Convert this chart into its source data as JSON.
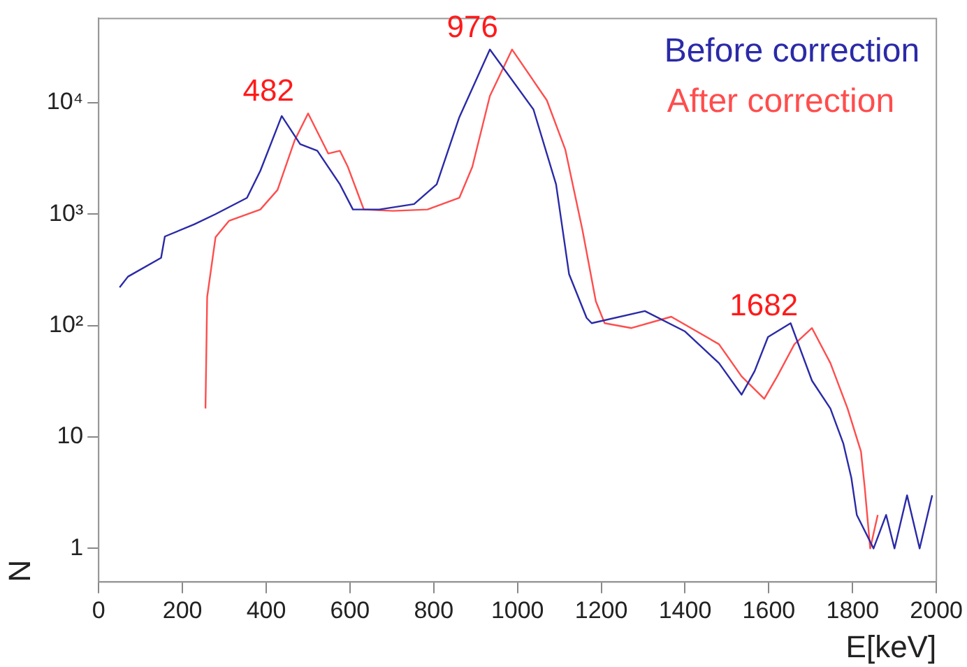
{
  "chart_data": {
    "type": "line",
    "xlabel": "E[keV]",
    "ylabel": "N",
    "xlim": [
      0,
      2000
    ],
    "xticks": [
      0,
      200,
      400,
      600,
      800,
      1000,
      1200,
      1400,
      1600,
      1800,
      2000
    ],
    "ylim": [
      0.5,
      57000
    ],
    "yticks": [
      1,
      10,
      {
        "value": 100,
        "label": "10²"
      },
      {
        "value": 1000,
        "label": "10³"
      },
      {
        "value": 10000,
        "label": "10⁴"
      }
    ],
    "log": "y",
    "grid": false,
    "legend": "top right",
    "marker": "none",
    "line_style": "solid",
    "series": [
      {
        "name": "Before correction",
        "color": "#2a2aa8",
        "x": [
          50,
          70,
          149,
          158,
          228,
          279,
          354,
          386,
          437,
          481,
          522,
          576,
          607,
          670,
          753,
          807,
          861,
          934,
          1038,
          1092,
          1123,
          1165,
          1177,
          1304,
          1399,
          1481,
          1535,
          1566,
          1598,
          1652,
          1703,
          1747,
          1778,
          1797,
          1810,
          1850,
          1880,
          1900,
          1930,
          1960,
          1990
        ],
        "values": [
          220,
          275,
          405,
          630,
          810,
          1000,
          1400,
          2450,
          7600,
          4250,
          3700,
          1850,
          1100,
          1100,
          1230,
          1850,
          7400,
          30000,
          8700,
          1850,
          290,
          117,
          105,
          135,
          89,
          46,
          24,
          39,
          79,
          105,
          32,
          18,
          8.7,
          4.3,
          2,
          1,
          2,
          1,
          3,
          1,
          3
        ]
      },
      {
        "name": "After correction",
        "color": "#ff4d4d",
        "x": [
          255,
          259,
          279,
          311,
          386,
          427,
          468,
          500,
          548,
          576,
          595,
          633,
          703,
          785,
          861,
          892,
          934,
          987,
          1070,
          1114,
          1155,
          1187,
          1208,
          1272,
          1367,
          1481,
          1535,
          1589,
          1620,
          1661,
          1703,
          1747,
          1788,
          1820,
          1829,
          1842,
          1860
        ],
        "values": [
          18,
          180,
          620,
          870,
          1100,
          1650,
          4600,
          8000,
          3500,
          3700,
          2650,
          1100,
          1070,
          1100,
          1400,
          2650,
          11500,
          30000,
          10500,
          3800,
          720,
          165,
          105,
          95,
          120,
          68,
          35,
          22,
          35,
          68,
          95,
          46,
          18,
          7.4,
          3.5,
          1,
          2
        ]
      }
    ],
    "annotations": [
      {
        "text": "482",
        "x": 500,
        "y": 8000
      },
      {
        "text": "976",
        "x": 987,
        "y": 30000
      },
      {
        "text": "1682",
        "x": 1703,
        "y": 95
      }
    ]
  }
}
